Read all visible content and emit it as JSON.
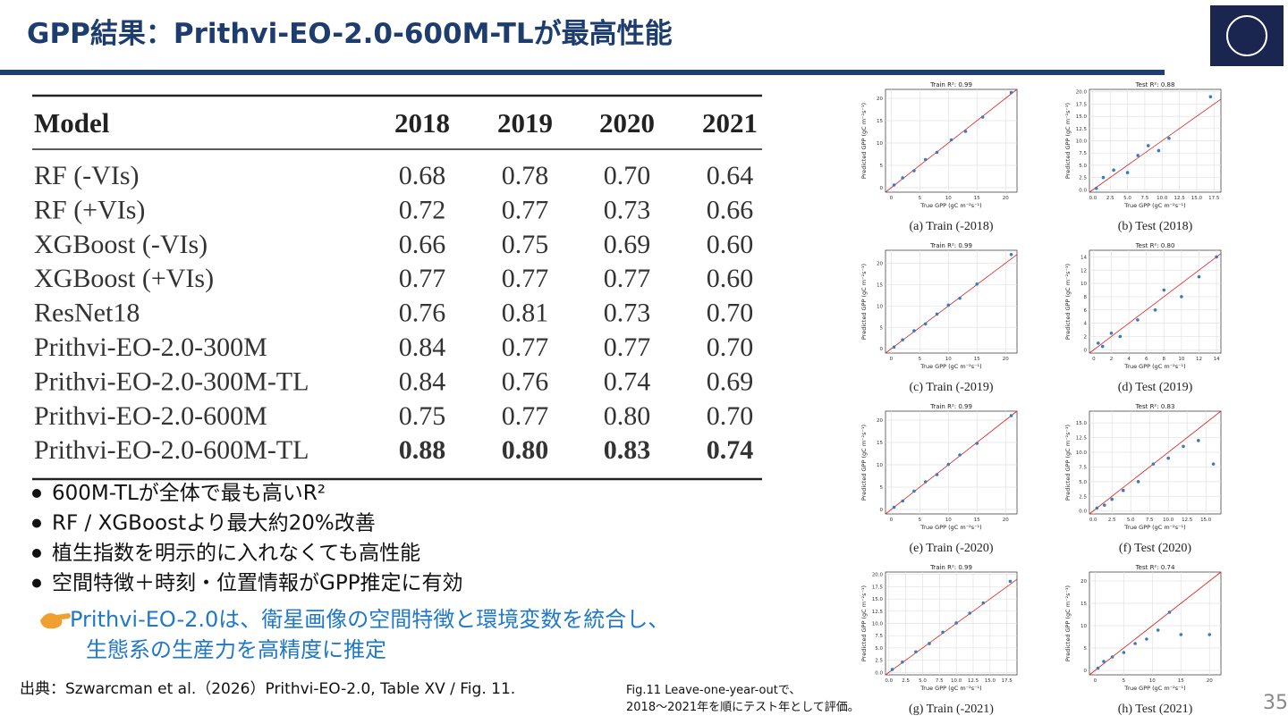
{
  "header": {
    "title": "GPP結果：Prithvi-EO-2.0-600M-TLが最高性能",
    "page_number": "35"
  },
  "table": {
    "columns": [
      "Model",
      "2018",
      "2019",
      "2020",
      "2021"
    ],
    "rows": [
      [
        "RF (-VIs)",
        "0.68",
        "0.78",
        "0.70",
        "0.64"
      ],
      [
        "RF (+VIs)",
        "0.72",
        "0.77",
        "0.73",
        "0.66"
      ],
      [
        "XGBoost (-VIs)",
        "0.66",
        "0.75",
        "0.69",
        "0.60"
      ],
      [
        "XGBoost (+VIs)",
        "0.77",
        "0.77",
        "0.77",
        "0.60"
      ],
      [
        "ResNet18",
        "0.76",
        "0.81",
        "0.73",
        "0.70"
      ],
      [
        "Prithvi-EO-2.0-300M",
        "0.84",
        "0.77",
        "0.77",
        "0.70"
      ],
      [
        "Prithvi-EO-2.0-300M-TL",
        "0.84",
        "0.76",
        "0.74",
        "0.69"
      ],
      [
        "Prithvi-EO-2.0-600M",
        "0.75",
        "0.77",
        "0.80",
        "0.70"
      ],
      [
        "Prithvi-EO-2.0-600M-TL",
        "0.88",
        "0.80",
        "0.83",
        "0.74"
      ]
    ]
  },
  "bullets": [
    "600M-TLが全体で最も高いR²",
    "RF / XGBoostより最大約20%改善",
    "植生指数を明示的に入れなくても高性能",
    "空間特徴＋時刻・位置情報がGPP推定に有効"
  ],
  "note": [
    "Prithvi-EO-2.0は、衛星画像の空間特徴と環境変数を統合し、",
    "生態系の生産力を高精度に推定"
  ],
  "source": "出典：Szwarcman et al.（2026）Prithvi-EO-2.0, Table XV / Fig. 11.",
  "figure_caption": [
    "Fig.11 Leave-one-year-outで、",
    "2018～2021年を順にテスト年として評価。"
  ],
  "chart_data": [
    {
      "type": "scatter",
      "title": "Train R²: 0.99",
      "caption": "(a) Train (-2018)",
      "x_label": "True GPP (gC m⁻²s⁻¹)",
      "y_label": "Predicted GPP (gC m⁻²s⁻¹)",
      "color": "#3a7bbf",
      "xlim": [
        -1,
        22
      ],
      "ylim": [
        -1,
        22
      ],
      "xticks": [
        0,
        5,
        10,
        15,
        20
      ],
      "yticks": [
        0,
        5,
        10,
        15,
        20
      ],
      "x": [
        0.5,
        2,
        4,
        6,
        8,
        10.5,
        13,
        16,
        21
      ],
      "y": [
        0.6,
        2.2,
        3.8,
        6.3,
        7.9,
        10.7,
        12.6,
        15.8,
        21.3
      ]
    },
    {
      "type": "scatter",
      "title": "Test R²: 0.88",
      "caption": "(b) Test (2018)",
      "x_label": "True GPP (gC m⁻²s⁻¹)",
      "y_label": "Predicted GPP (gC m⁻²s⁻¹)",
      "color": "#3a7bbf",
      "xlim": [
        -0.5,
        18.5
      ],
      "ylim": [
        -0.5,
        20.5
      ],
      "xticks": [
        {
          "value": 0,
          "label": "0.0"
        },
        2.5,
        {
          "value": 5,
          "label": "5.0"
        },
        7.5,
        {
          "value": 10,
          "label": "10.0"
        },
        12.5,
        {
          "value": 15,
          "label": "15.0"
        },
        17.5
      ],
      "yticks": [
        {
          "value": 0,
          "label": "0.0"
        },
        2.5,
        {
          "value": 5,
          "label": "5.0"
        },
        7.5,
        {
          "value": 10,
          "label": "10.0"
        },
        12.5,
        {
          "value": 15,
          "label": "15.0"
        },
        17.5,
        {
          "value": 20,
          "label": "20.0"
        }
      ],
      "x": [
        0.5,
        1.5,
        3,
        5,
        6.5,
        8,
        9.5,
        11,
        17
      ],
      "y": [
        0.3,
        2.5,
        4,
        3.5,
        7,
        9,
        8,
        10.5,
        19
      ]
    },
    {
      "type": "scatter",
      "title": "Train R²: 0.99",
      "caption": "(c) Train (-2019)",
      "x_label": "True GPP (gC m⁻²s⁻¹)",
      "y_label": "Predicted GPP (gC m⁻²s⁻¹)",
      "color": "#3a7bbf",
      "xlim": [
        -1,
        22
      ],
      "ylim": [
        -1,
        23
      ],
      "xticks": [
        0,
        5,
        10,
        15,
        20
      ],
      "yticks": [
        0,
        5,
        10,
        15,
        20
      ],
      "x": [
        0.5,
        2,
        4,
        6,
        8,
        10,
        12,
        15,
        21
      ],
      "y": [
        0.4,
        2.1,
        4.2,
        5.8,
        8.1,
        10.2,
        11.8,
        15.1,
        22
      ]
    },
    {
      "type": "scatter",
      "title": "Test R²: 0.80",
      "caption": "(d) Test (2019)",
      "x_label": "True GPP (gC m⁻²s⁻¹)",
      "y_label": "Predicted GPP (gC m⁻²s⁻¹)",
      "color": "#3a7bbf",
      "xlim": [
        -0.5,
        14.5
      ],
      "ylim": [
        -0.5,
        15
      ],
      "xticks": [
        0,
        2,
        4,
        6,
        8,
        10,
        12,
        14
      ],
      "yticks": [
        0,
        2,
        4,
        6,
        8,
        10,
        12,
        14
      ],
      "x": [
        0.5,
        1,
        2,
        3,
        5,
        7,
        8,
        10,
        12,
        14
      ],
      "y": [
        1,
        0.5,
        2.5,
        2,
        4.5,
        6,
        9,
        8,
        11,
        14
      ]
    },
    {
      "type": "scatter",
      "title": "Train R²: 0.99",
      "caption": "(e) Train (-2020)",
      "x_label": "True GPP (gC m⁻²s⁻¹)",
      "y_label": "Predicted GPP (gC m⁻²s⁻¹)",
      "color": "#3a7bbf",
      "xlim": [
        -1,
        22
      ],
      "ylim": [
        -1,
        22
      ],
      "xticks": [
        0,
        5,
        10,
        15,
        20
      ],
      "yticks": [
        0,
        5,
        10,
        15,
        20
      ],
      "x": [
        0.5,
        2,
        4,
        6,
        8,
        10,
        12,
        15,
        21
      ],
      "y": [
        0.5,
        1.9,
        4.1,
        6.2,
        7.8,
        10.1,
        12.2,
        14.8,
        21
      ]
    },
    {
      "type": "scatter",
      "title": "Test R²: 0.83",
      "caption": "(f) Test (2020)",
      "x_label": "True GPP (gC m⁻²s⁻¹)",
      "y_label": "Predicted GPP (gC m⁻²s⁻¹)",
      "color": "#3a7bbf",
      "xlim": [
        -0.5,
        17
      ],
      "ylim": [
        -0.5,
        17
      ],
      "xticks": [
        {
          "value": 0,
          "label": "0.0"
        },
        2.5,
        {
          "value": 5,
          "label": "5.0"
        },
        7.5,
        {
          "value": 10,
          "label": "10.0"
        },
        12.5,
        {
          "value": 15,
          "label": "15.0"
        }
      ],
      "yticks": [
        {
          "value": 0,
          "label": "0.0"
        },
        2.5,
        {
          "value": 5,
          "label": "5.0"
        },
        7.5,
        {
          "value": 10,
          "label": "10.0"
        },
        12.5,
        {
          "value": 15,
          "label": "15.0"
        }
      ],
      "x": [
        0.5,
        1.5,
        2.5,
        4,
        6,
        8,
        10,
        12,
        14,
        16
      ],
      "y": [
        0.5,
        1,
        2,
        3.5,
        5,
        8,
        9,
        11,
        12,
        8
      ]
    },
    {
      "type": "scatter",
      "title": "Train R²: 0.99",
      "caption": "(g) Train (-2021)",
      "x_label": "True GPP (gC m⁻²s⁻¹)",
      "y_label": "Predicted GPP (gC m⁻²s⁻¹)",
      "color": "#3a7bbf",
      "xlim": [
        -0.5,
        19
      ],
      "ylim": [
        -0.5,
        20.5
      ],
      "xticks": [
        {
          "value": 0,
          "label": "0.0"
        },
        2.5,
        {
          "value": 5,
          "label": "5.0"
        },
        7.5,
        {
          "value": 10,
          "label": "10.0"
        },
        12.5,
        {
          "value": 15,
          "label": "15.0"
        },
        17.5
      ],
      "yticks": [
        {
          "value": 0,
          "label": "0.0"
        },
        2.5,
        {
          "value": 5,
          "label": "5.0"
        },
        7.5,
        {
          "value": 10,
          "label": "10.0"
        },
        12.5,
        {
          "value": 15,
          "label": "15.0"
        },
        17.5,
        {
          "value": 20,
          "label": "20.0"
        }
      ],
      "x": [
        0.5,
        2,
        4,
        6,
        8,
        10,
        12,
        14,
        18
      ],
      "y": [
        0.6,
        2.1,
        4.2,
        5.9,
        8.2,
        10.1,
        12.1,
        14.2,
        18.6
      ]
    },
    {
      "type": "scatter",
      "title": "Test R²: 0.74",
      "caption": "(h) Test (2021)",
      "x_label": "True GPP (gC m⁻²s⁻¹)",
      "y_label": "Predicted GPP (gC m⁻²s⁻¹)",
      "color": "#3a7bbf",
      "xlim": [
        -1,
        22
      ],
      "ylim": [
        -1,
        22
      ],
      "xticks": [
        0,
        5,
        10,
        15,
        20
      ],
      "yticks": [
        0,
        5,
        10,
        15,
        20
      ],
      "x": [
        0.5,
        1.5,
        3,
        5,
        7,
        9,
        11,
        13,
        15,
        20
      ],
      "y": [
        0.5,
        2,
        3,
        4,
        6,
        7,
        9,
        13,
        8,
        8
      ]
    }
  ]
}
